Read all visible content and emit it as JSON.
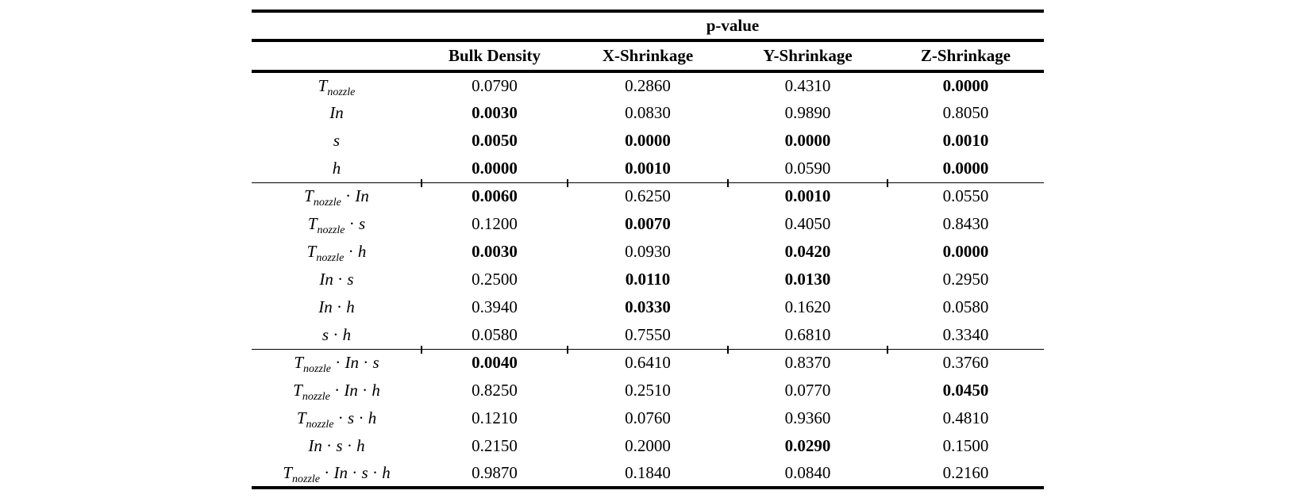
{
  "page": {
    "background": "#ffffff",
    "text_color": "#000000",
    "rule_color": "#000000"
  },
  "table": {
    "title": "p-value",
    "separator": "·",
    "columns": [
      "Bulk Density",
      "X-Shrinkage",
      "Y-Shrinkage",
      "Z-Shrinkage"
    ],
    "groups": [
      {
        "rows": [
          {
            "label": [
              {
                "text": "T",
                "sub": "nozzle"
              }
            ],
            "values": [
              "0.0790",
              "0.2860",
              "0.4310",
              "0.0000"
            ],
            "bold": [
              false,
              false,
              false,
              true
            ]
          },
          {
            "label": [
              {
                "text": "In"
              }
            ],
            "values": [
              "0.0030",
              "0.0830",
              "0.9890",
              "0.8050"
            ],
            "bold": [
              true,
              false,
              false,
              false
            ]
          },
          {
            "label": [
              {
                "text": "s"
              }
            ],
            "values": [
              "0.0050",
              "0.0000",
              "0.0000",
              "0.0010"
            ],
            "bold": [
              true,
              true,
              true,
              true
            ]
          },
          {
            "label": [
              {
                "text": "h"
              }
            ],
            "values": [
              "0.0000",
              "0.0010",
              "0.0590",
              "0.0000"
            ],
            "bold": [
              true,
              true,
              false,
              true
            ]
          }
        ]
      },
      {
        "rows": [
          {
            "label": [
              {
                "text": "T",
                "sub": "nozzle"
              },
              {
                "text": "In"
              }
            ],
            "values": [
              "0.0060",
              "0.6250",
              "0.0010",
              "0.0550"
            ],
            "bold": [
              true,
              false,
              true,
              false
            ]
          },
          {
            "label": [
              {
                "text": "T",
                "sub": "nozzle"
              },
              {
                "text": "s"
              }
            ],
            "values": [
              "0.1200",
              "0.0070",
              "0.4050",
              "0.8430"
            ],
            "bold": [
              false,
              true,
              false,
              false
            ]
          },
          {
            "label": [
              {
                "text": "T",
                "sub": "nozzle"
              },
              {
                "text": "h"
              }
            ],
            "values": [
              "0.0030",
              "0.0930",
              "0.0420",
              "0.0000"
            ],
            "bold": [
              true,
              false,
              true,
              true
            ]
          },
          {
            "label": [
              {
                "text": "In"
              },
              {
                "text": "s"
              }
            ],
            "values": [
              "0.2500",
              "0.0110",
              "0.0130",
              "0.2950"
            ],
            "bold": [
              false,
              true,
              true,
              false
            ]
          },
          {
            "label": [
              {
                "text": "In"
              },
              {
                "text": "h"
              }
            ],
            "values": [
              "0.3940",
              "0.0330",
              "0.1620",
              "0.0580"
            ],
            "bold": [
              false,
              true,
              false,
              false
            ]
          },
          {
            "label": [
              {
                "text": "s"
              },
              {
                "text": "h"
              }
            ],
            "values": [
              "0.0580",
              "0.7550",
              "0.6810",
              "0.3340"
            ],
            "bold": [
              false,
              false,
              false,
              false
            ]
          }
        ]
      },
      {
        "rows": [
          {
            "label": [
              {
                "text": "T",
                "sub": "nozzle"
              },
              {
                "text": "In"
              },
              {
                "text": "s"
              }
            ],
            "values": [
              "0.0040",
              "0.6410",
              "0.8370",
              "0.3760"
            ],
            "bold": [
              true,
              false,
              false,
              false
            ]
          },
          {
            "label": [
              {
                "text": "T",
                "sub": "nozzle"
              },
              {
                "text": "In"
              },
              {
                "text": "h"
              }
            ],
            "values": [
              "0.8250",
              "0.2510",
              "0.0770",
              "0.0450"
            ],
            "bold": [
              false,
              false,
              false,
              true
            ]
          },
          {
            "label": [
              {
                "text": "T",
                "sub": "nozzle"
              },
              {
                "text": "s"
              },
              {
                "text": "h"
              }
            ],
            "values": [
              "0.1210",
              "0.0760",
              "0.9360",
              "0.4810"
            ],
            "bold": [
              false,
              false,
              false,
              false
            ]
          },
          {
            "label": [
              {
                "text": "In"
              },
              {
                "text": "s"
              },
              {
                "text": "h"
              }
            ],
            "values": [
              "0.2150",
              "0.2000",
              "0.0290",
              "0.1500"
            ],
            "bold": [
              false,
              false,
              true,
              false
            ]
          },
          {
            "label": [
              {
                "text": "T",
                "sub": "nozzle"
              },
              {
                "text": "In"
              },
              {
                "text": "s"
              },
              {
                "text": "h"
              }
            ],
            "values": [
              "0.9870",
              "0.1840",
              "0.0840",
              "0.2160"
            ],
            "bold": [
              false,
              false,
              false,
              false
            ]
          }
        ]
      }
    ]
  }
}
